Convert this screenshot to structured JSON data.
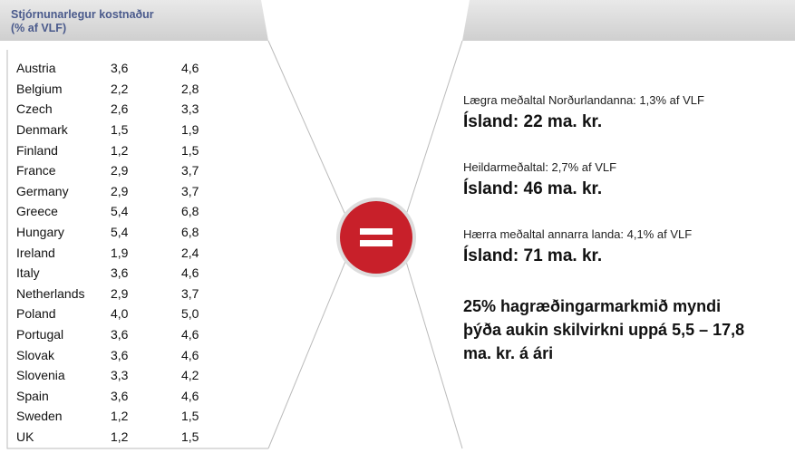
{
  "left_panel": {
    "title_lines": [
      "Stjórnunarlegur kostnaður",
      "(% af VLF)"
    ],
    "table": {
      "rows": [
        [
          "Austria",
          "3,6",
          "4,6"
        ],
        [
          "Belgium",
          "2,2",
          "2,8"
        ],
        [
          "Czech",
          "2,6",
          "3,3"
        ],
        [
          "Denmark",
          "1,5",
          "1,9"
        ],
        [
          "Finland",
          "1,2",
          "1,5"
        ],
        [
          "France",
          "2,9",
          "3,7"
        ],
        [
          "Germany",
          "2,9",
          "3,7"
        ],
        [
          "Greece",
          "5,4",
          "6,8"
        ],
        [
          "Hungary",
          "5,4",
          "6,8"
        ],
        [
          "Ireland",
          "1,9",
          "2,4"
        ],
        [
          "Italy",
          "3,6",
          "4,6"
        ],
        [
          "Netherlands",
          "2,9",
          "3,7"
        ],
        [
          "Poland",
          "4,0",
          "5,0"
        ],
        [
          "Portugal",
          "3,6",
          "4,6"
        ],
        [
          "Slovak",
          "3,6",
          "4,6"
        ],
        [
          "Slovenia",
          "3,3",
          "4,2"
        ],
        [
          "Spain",
          "3,6",
          "4,6"
        ],
        [
          "Sweden",
          "1,2",
          "1,5"
        ],
        [
          "UK",
          "1,2",
          "1,5"
        ]
      ]
    }
  },
  "right_panel": {
    "items": [
      {
        "label": "Lægra meðaltal Norðurlandanna: 1,3% af VLF",
        "result": "Ísland: 22 ma. kr."
      },
      {
        "label": "Heildarmeðaltal: 2,7% af VLF",
        "result": "Ísland: 46 ma. kr."
      },
      {
        "label": "Hærra meðaltal annarra landa: 4,1% af VLF",
        "result": "Ísland: 71 ma. kr."
      }
    ],
    "conclusion_lines": [
      "25% hagræðingarmarkmið myndi",
      "þýða aukin skilvirkni uppá 5,5 – 17,8",
      "ma. kr. á ári"
    ]
  }
}
